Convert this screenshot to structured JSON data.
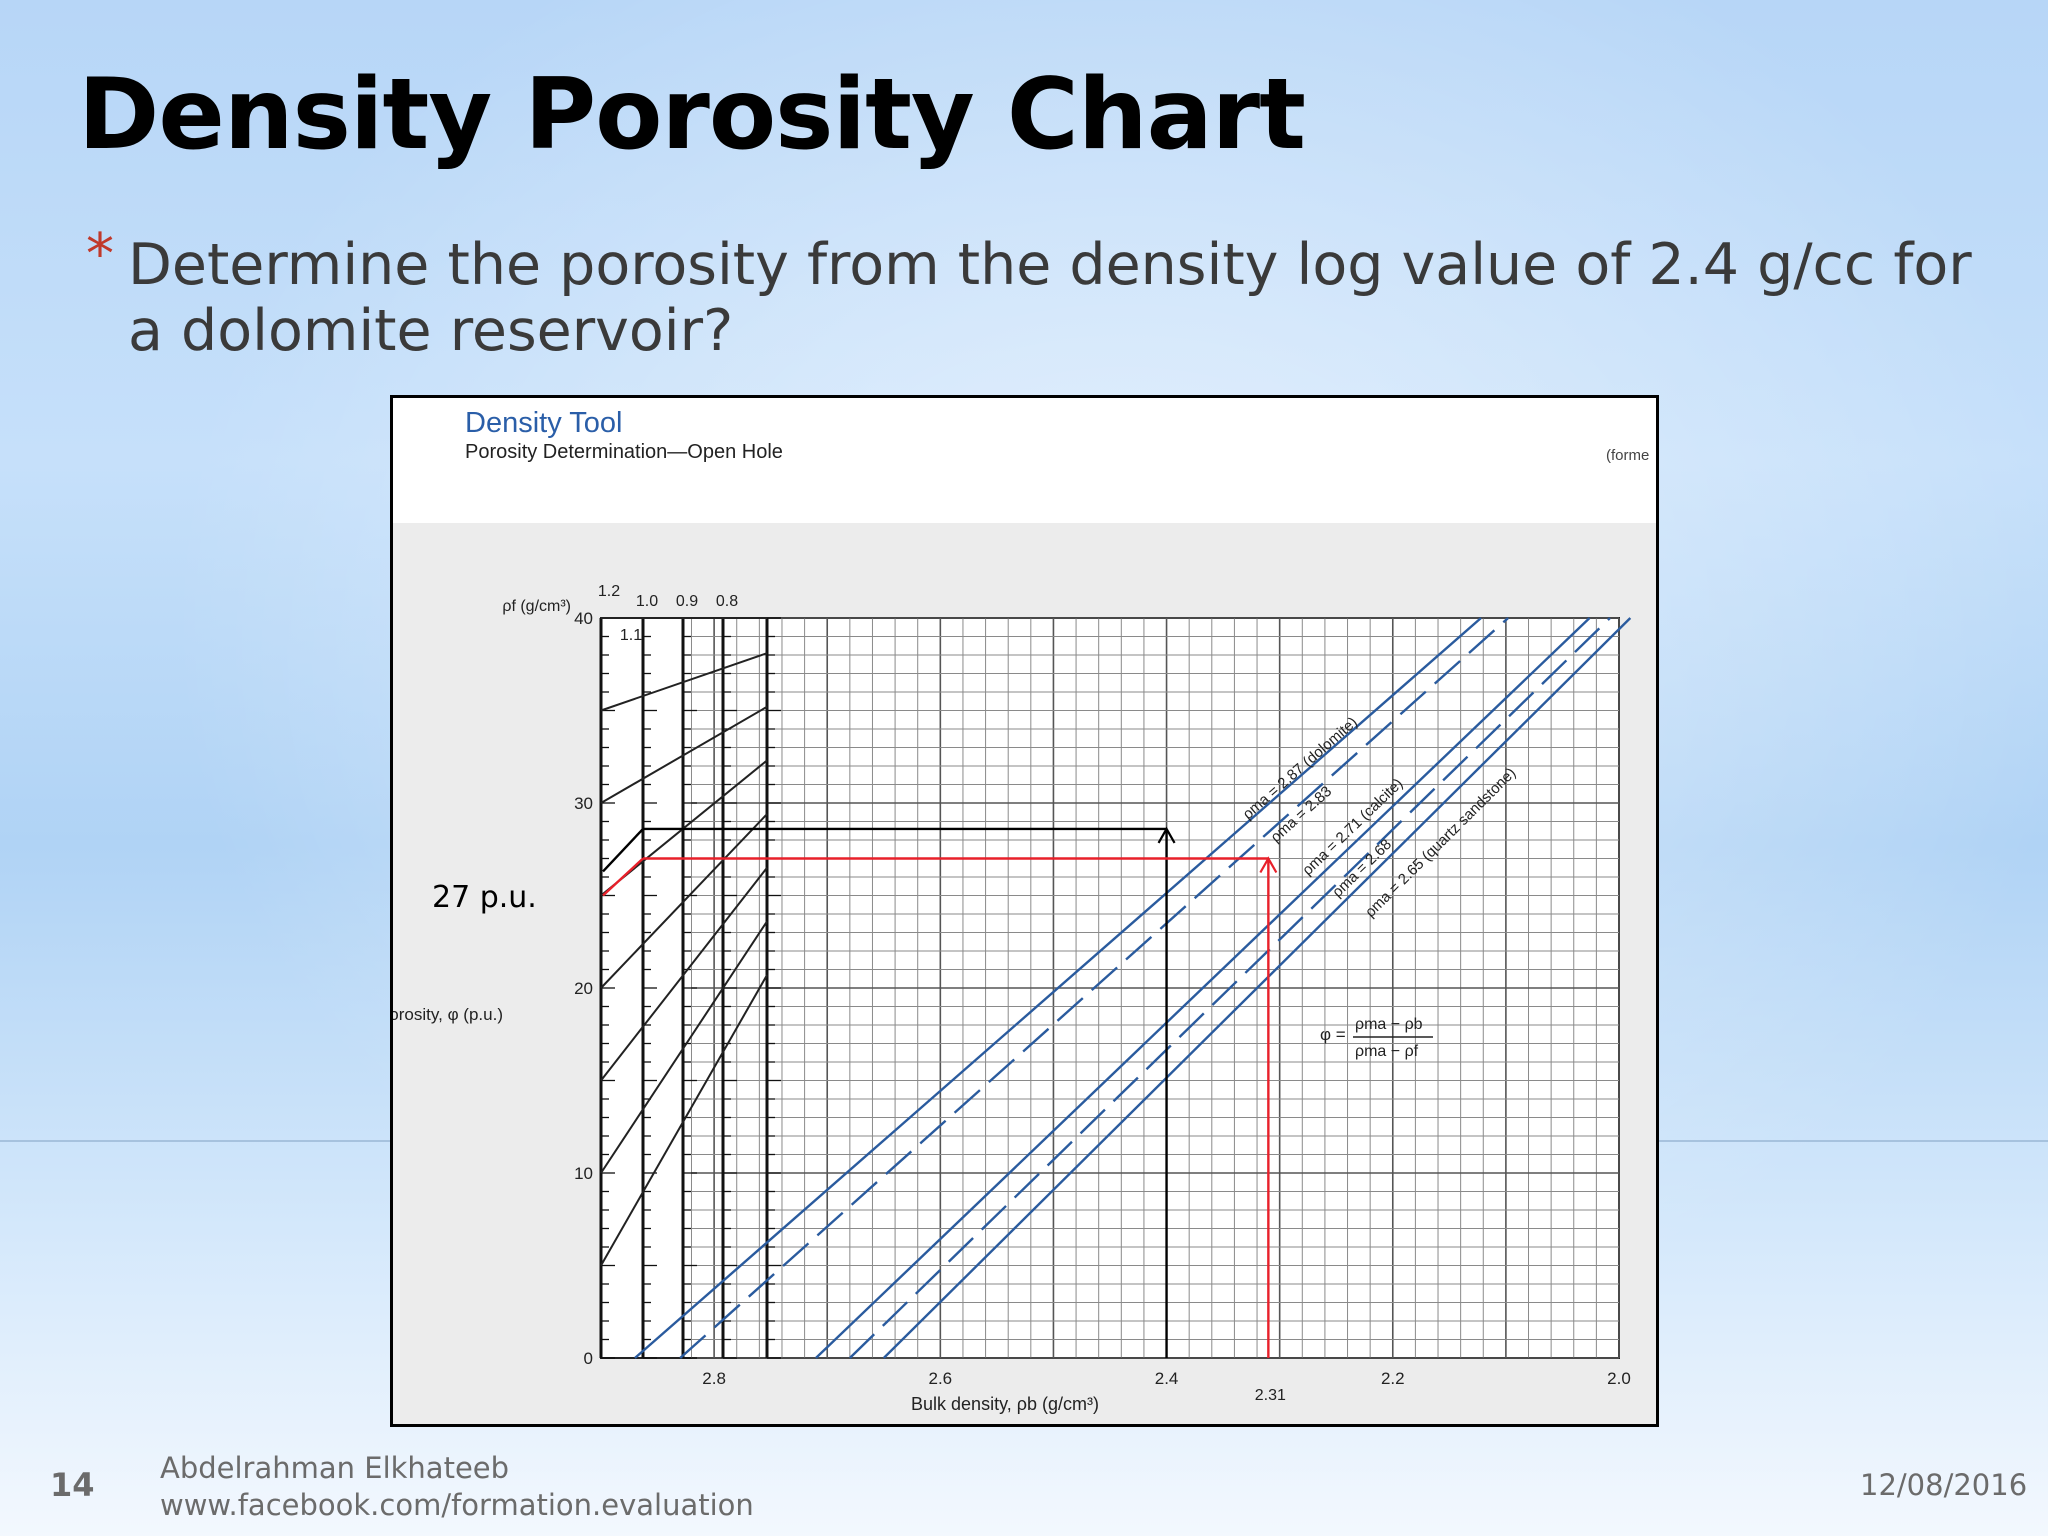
{
  "slide": {
    "title": "Density Porosity Chart",
    "bullet_marker": "*",
    "bullet_text": "Determine the porosity from the density log value of 2.4 g/cc for a dolomite reservoir?",
    "slide_number": "14",
    "author": "Abdelrahman Elkhateeb",
    "url": "www.facebook.com/formation.evaluation",
    "date": "12/08/2016",
    "annotation_label": "27 p.u."
  },
  "chart_data": {
    "type": "line",
    "title": "Density Tool",
    "subtitle": "Porosity Determination—Open Hole",
    "corner_note": "(forme",
    "xlabel": "Bulk density, ρb (g/cm³)",
    "ylabel": "Porosity, φ (p.u.)",
    "xlim": [
      2.9,
      2.0
    ],
    "ylim": [
      0,
      40
    ],
    "x_ticks": [
      "2.8",
      "2.6",
      "2.4",
      "2.2",
      "2.0"
    ],
    "y_ticks": [
      "0",
      "10",
      "20",
      "30",
      "40"
    ],
    "fluid_density_label": "ρf (g/cm³)",
    "fluid_density_values": [
      "1.2",
      "1.1",
      "1.0",
      "0.9",
      "0.8"
    ],
    "formula": {
      "lhs": "φ =",
      "numerator": "ρma − ρb",
      "denominator": "ρma − ρf"
    },
    "series": [
      {
        "name": "ρma = 2.87 (dolomite)",
        "matrix_density": 2.87,
        "dashed": false
      },
      {
        "name": "ρma = 2.83",
        "matrix_density": 2.83,
        "dashed": true
      },
      {
        "name": "ρma = 2.71 (calcite)",
        "matrix_density": 2.71,
        "dashed": false
      },
      {
        "name": "ρma = 2.68",
        "matrix_density": 2.68,
        "dashed": true
      },
      {
        "name": "ρma = 2.65 (quartz sandstone)",
        "matrix_density": 2.65,
        "dashed": false
      }
    ],
    "fluid_density_for_lines": 1.0,
    "annotations": [
      {
        "label": "",
        "bulk_density": 2.4,
        "porosity": 28.6,
        "color": "#000000"
      },
      {
        "label": "2.31",
        "bulk_density": 2.31,
        "porosity": 27,
        "color": "#e8202a"
      }
    ]
  }
}
